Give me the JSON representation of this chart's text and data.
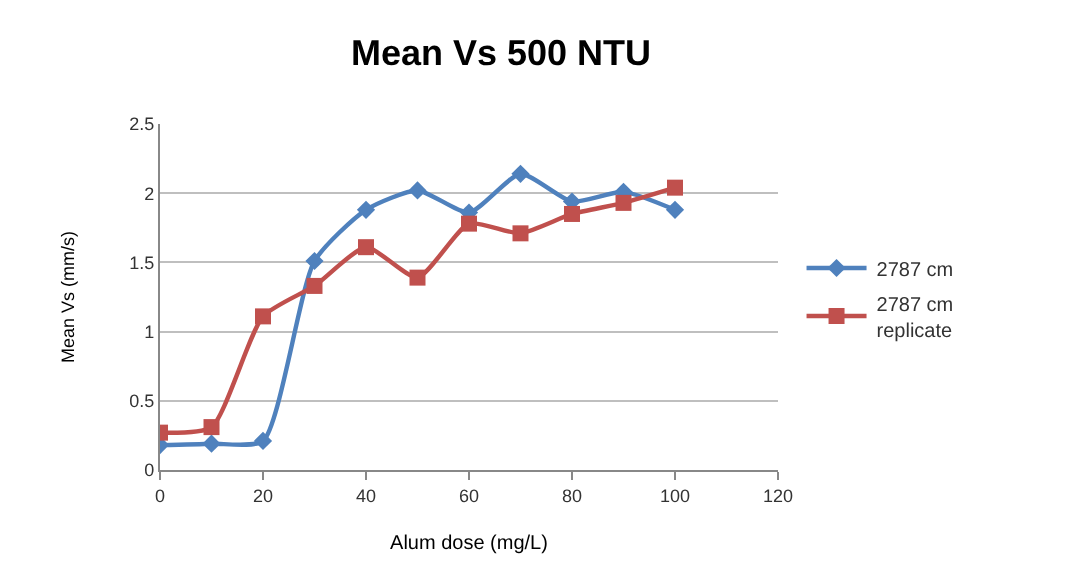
{
  "chart_data": {
    "type": "line",
    "title": "Mean Vs 500 NTU",
    "xlabel": "Alum dose (mg/L)",
    "ylabel": "Mean Vs (mm/s)",
    "x": [
      0,
      10,
      20,
      30,
      40,
      50,
      60,
      70,
      80,
      90,
      100
    ],
    "series": [
      {
        "name": "2787 cm",
        "color": "#4f81bd",
        "marker": "diamond",
        "values": [
          0.18,
          0.19,
          0.21,
          1.51,
          1.88,
          2.02,
          1.86,
          2.14,
          1.94,
          2.01,
          1.88
        ]
      },
      {
        "name": "2787 cm replicate",
        "color": "#c0504d",
        "marker": "square",
        "values": [
          0.27,
          0.31,
          1.11,
          1.33,
          1.61,
          1.39,
          1.78,
          1.71,
          1.85,
          1.93,
          2.04
        ]
      }
    ],
    "xlim": [
      0,
      120
    ],
    "xticks": [
      0,
      20,
      40,
      60,
      80,
      100,
      120
    ],
    "ylim": [
      0,
      2.5
    ],
    "yticks": [
      0,
      0.5,
      1,
      1.5,
      2,
      2.5
    ],
    "grid": "y",
    "legend": "right",
    "line_style": "solid"
  }
}
